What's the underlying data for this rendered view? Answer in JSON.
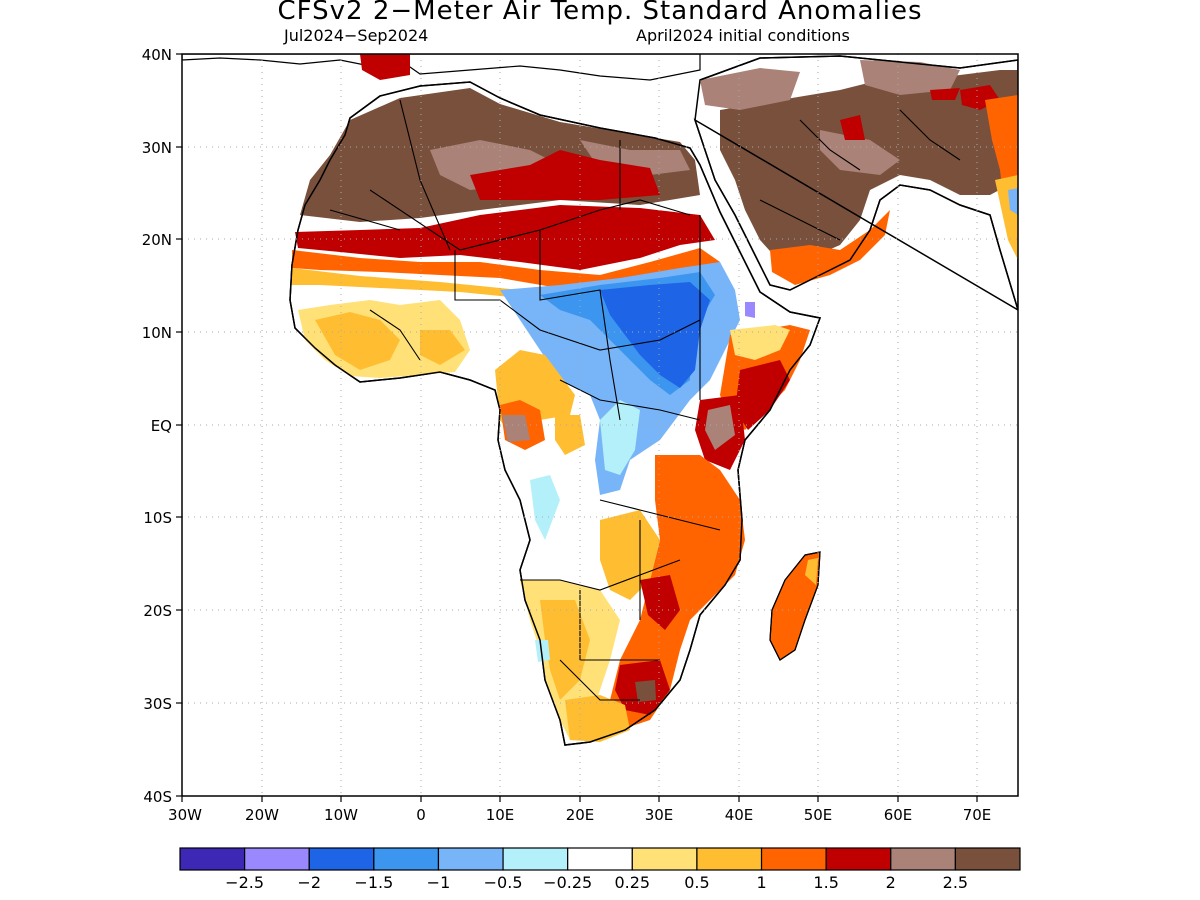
{
  "title": "CFSv2 2−Meter Air Temp. Standard Anomalies",
  "subtitle_left": "Jul2024−Sep2024",
  "subtitle_right": "April2024 initial conditions",
  "lat_labels": [
    "40N",
    "30N",
    "20N",
    "10N",
    "EQ",
    "10S",
    "20S",
    "30S",
    "40S"
  ],
  "lon_labels": [
    "30W",
    "20W",
    "10W",
    "0",
    "10E",
    "20E",
    "30E",
    "40E",
    "50E",
    "60E",
    "70E"
  ],
  "colorbar": {
    "colors": [
      "#3c28b4",
      "#9a88ff",
      "#1e64e6",
      "#3c96f0",
      "#78b4f8",
      "#b4f0fa",
      "#ffffff",
      "#ffe178",
      "#ffbe32",
      "#ff6400",
      "#c00000",
      "#aa8278",
      "#78503c"
    ],
    "labels": [
      "−2.5",
      "−2",
      "−1.5",
      "−1",
      "−0.5",
      "−0.25",
      "0.25",
      "0.5",
      "1",
      "1.5",
      "2",
      "2.5"
    ]
  }
}
